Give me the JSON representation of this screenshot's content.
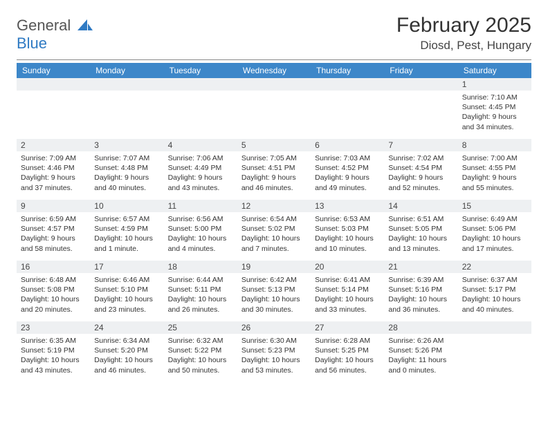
{
  "brand": {
    "line1": "General",
    "line2": "Blue"
  },
  "title": "February 2025",
  "location": "Diosd, Pest, Hungary",
  "colors": {
    "header_bg": "#3d87c9",
    "header_text": "#ffffff",
    "daynum_bg": "#eef0f2",
    "text": "#333333",
    "brand_blue": "#2f7ac3"
  },
  "day_headers": [
    "Sunday",
    "Monday",
    "Tuesday",
    "Wednesday",
    "Thursday",
    "Friday",
    "Saturday"
  ],
  "weeks": [
    [
      null,
      null,
      null,
      null,
      null,
      null,
      {
        "n": "1",
        "sunrise": "7:10 AM",
        "sunset": "4:45 PM",
        "daylight": "9 hours and 34 minutes."
      }
    ],
    [
      {
        "n": "2",
        "sunrise": "7:09 AM",
        "sunset": "4:46 PM",
        "daylight": "9 hours and 37 minutes."
      },
      {
        "n": "3",
        "sunrise": "7:07 AM",
        "sunset": "4:48 PM",
        "daylight": "9 hours and 40 minutes."
      },
      {
        "n": "4",
        "sunrise": "7:06 AM",
        "sunset": "4:49 PM",
        "daylight": "9 hours and 43 minutes."
      },
      {
        "n": "5",
        "sunrise": "7:05 AM",
        "sunset": "4:51 PM",
        "daylight": "9 hours and 46 minutes."
      },
      {
        "n": "6",
        "sunrise": "7:03 AM",
        "sunset": "4:52 PM",
        "daylight": "9 hours and 49 minutes."
      },
      {
        "n": "7",
        "sunrise": "7:02 AM",
        "sunset": "4:54 PM",
        "daylight": "9 hours and 52 minutes."
      },
      {
        "n": "8",
        "sunrise": "7:00 AM",
        "sunset": "4:55 PM",
        "daylight": "9 hours and 55 minutes."
      }
    ],
    [
      {
        "n": "9",
        "sunrise": "6:59 AM",
        "sunset": "4:57 PM",
        "daylight": "9 hours and 58 minutes."
      },
      {
        "n": "10",
        "sunrise": "6:57 AM",
        "sunset": "4:59 PM",
        "daylight": "10 hours and 1 minute."
      },
      {
        "n": "11",
        "sunrise": "6:56 AM",
        "sunset": "5:00 PM",
        "daylight": "10 hours and 4 minutes."
      },
      {
        "n": "12",
        "sunrise": "6:54 AM",
        "sunset": "5:02 PM",
        "daylight": "10 hours and 7 minutes."
      },
      {
        "n": "13",
        "sunrise": "6:53 AM",
        "sunset": "5:03 PM",
        "daylight": "10 hours and 10 minutes."
      },
      {
        "n": "14",
        "sunrise": "6:51 AM",
        "sunset": "5:05 PM",
        "daylight": "10 hours and 13 minutes."
      },
      {
        "n": "15",
        "sunrise": "6:49 AM",
        "sunset": "5:06 PM",
        "daylight": "10 hours and 17 minutes."
      }
    ],
    [
      {
        "n": "16",
        "sunrise": "6:48 AM",
        "sunset": "5:08 PM",
        "daylight": "10 hours and 20 minutes."
      },
      {
        "n": "17",
        "sunrise": "6:46 AM",
        "sunset": "5:10 PM",
        "daylight": "10 hours and 23 minutes."
      },
      {
        "n": "18",
        "sunrise": "6:44 AM",
        "sunset": "5:11 PM",
        "daylight": "10 hours and 26 minutes."
      },
      {
        "n": "19",
        "sunrise": "6:42 AM",
        "sunset": "5:13 PM",
        "daylight": "10 hours and 30 minutes."
      },
      {
        "n": "20",
        "sunrise": "6:41 AM",
        "sunset": "5:14 PM",
        "daylight": "10 hours and 33 minutes."
      },
      {
        "n": "21",
        "sunrise": "6:39 AM",
        "sunset": "5:16 PM",
        "daylight": "10 hours and 36 minutes."
      },
      {
        "n": "22",
        "sunrise": "6:37 AM",
        "sunset": "5:17 PM",
        "daylight": "10 hours and 40 minutes."
      }
    ],
    [
      {
        "n": "23",
        "sunrise": "6:35 AM",
        "sunset": "5:19 PM",
        "daylight": "10 hours and 43 minutes."
      },
      {
        "n": "24",
        "sunrise": "6:34 AM",
        "sunset": "5:20 PM",
        "daylight": "10 hours and 46 minutes."
      },
      {
        "n": "25",
        "sunrise": "6:32 AM",
        "sunset": "5:22 PM",
        "daylight": "10 hours and 50 minutes."
      },
      {
        "n": "26",
        "sunrise": "6:30 AM",
        "sunset": "5:23 PM",
        "daylight": "10 hours and 53 minutes."
      },
      {
        "n": "27",
        "sunrise": "6:28 AM",
        "sunset": "5:25 PM",
        "daylight": "10 hours and 56 minutes."
      },
      {
        "n": "28",
        "sunrise": "6:26 AM",
        "sunset": "5:26 PM",
        "daylight": "11 hours and 0 minutes."
      },
      null
    ]
  ],
  "labels": {
    "sunrise": "Sunrise:",
    "sunset": "Sunset:",
    "daylight": "Daylight:"
  }
}
